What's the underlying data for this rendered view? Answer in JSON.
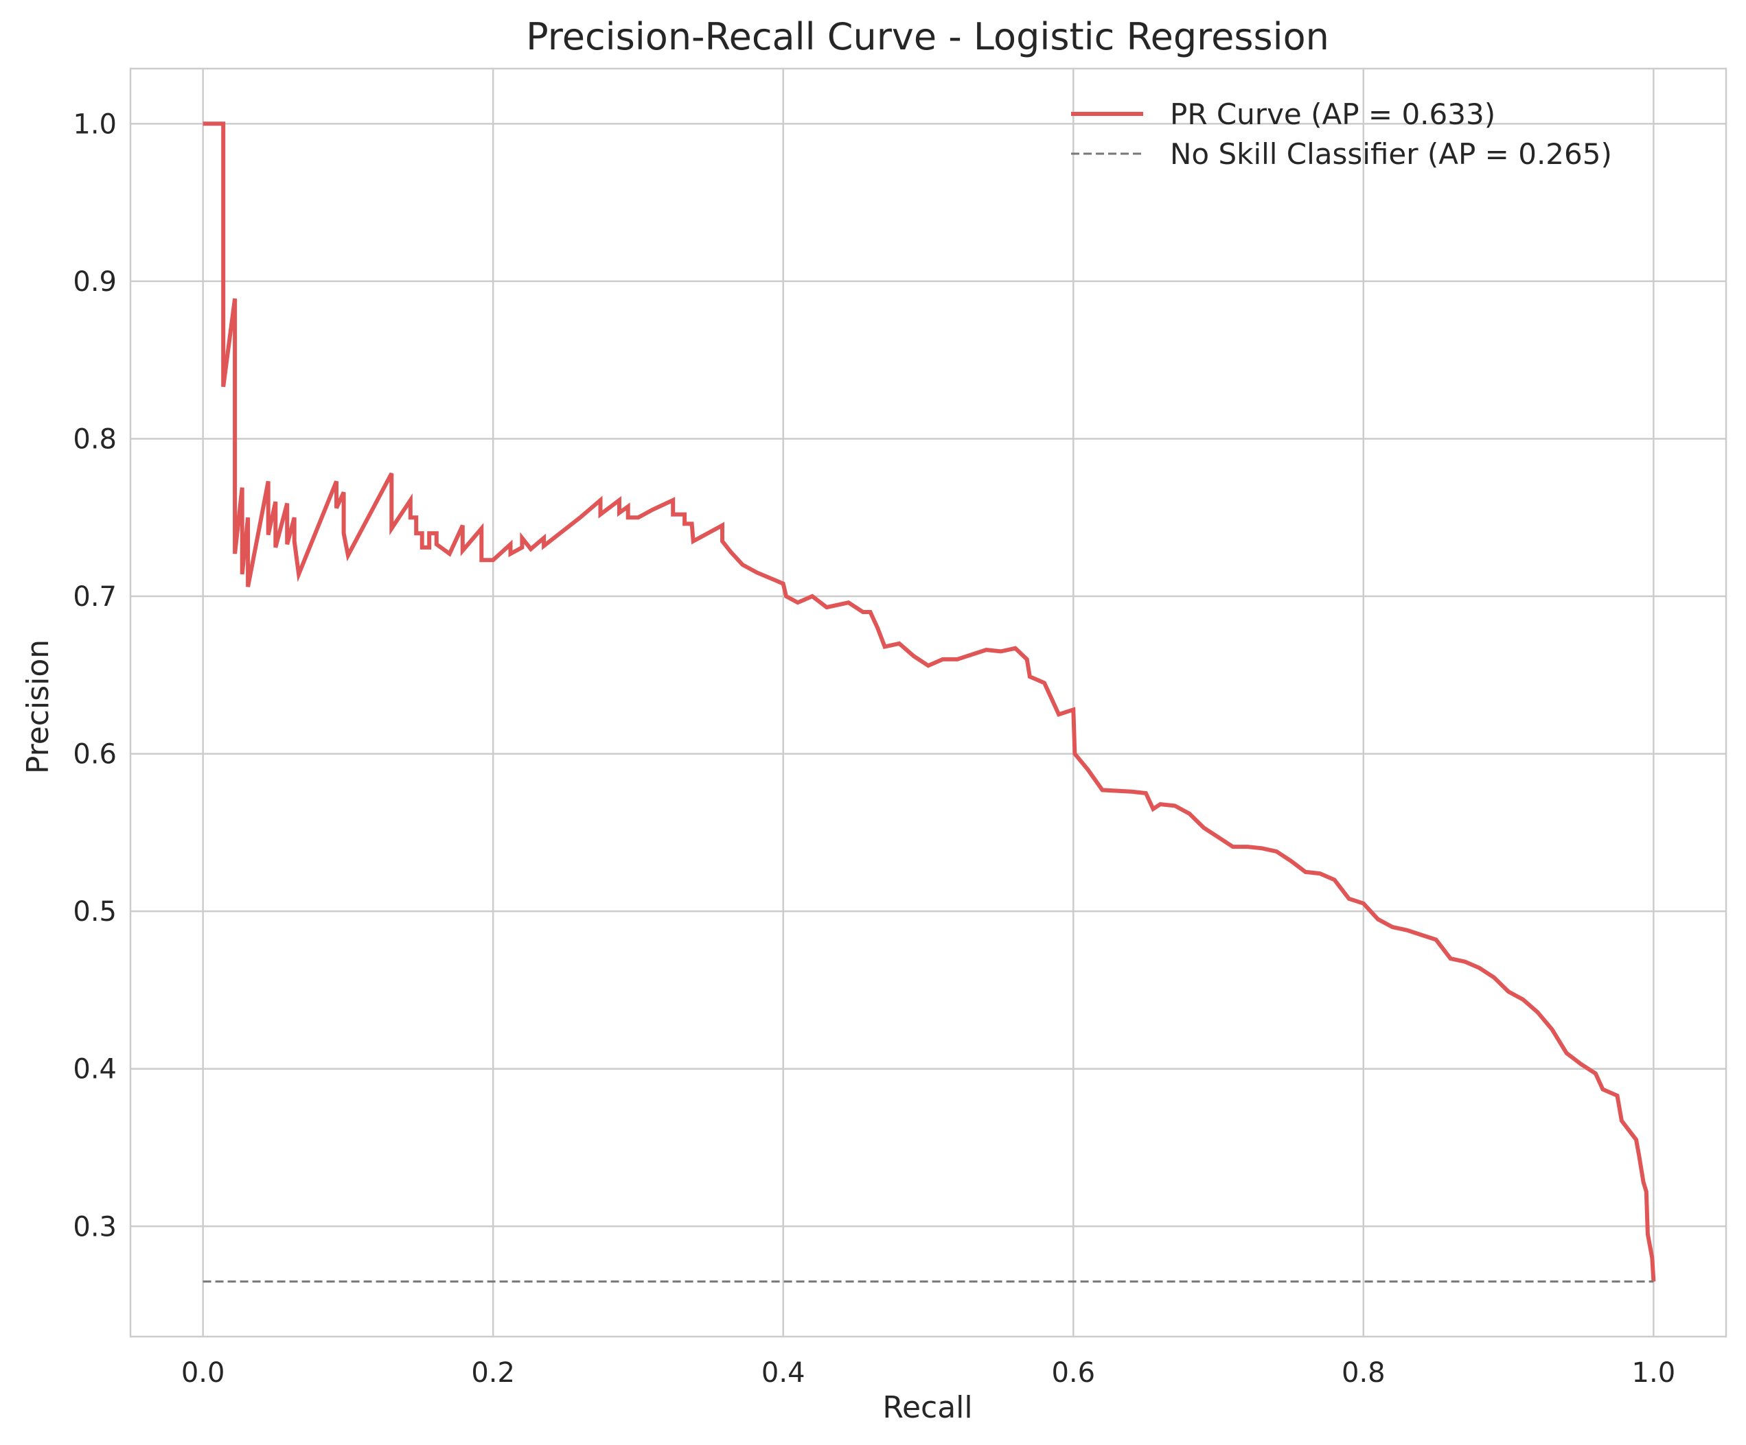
{
  "chart_data": {
    "type": "line",
    "title": "Precision-Recall Curve - Logistic Regression",
    "xlabel": "Recall",
    "ylabel": "Precision",
    "xlim": [
      -0.05,
      1.05
    ],
    "ylim": [
      0.23,
      1.035
    ],
    "xticks": [
      0.0,
      0.2,
      0.4,
      0.6,
      0.8,
      1.0
    ],
    "xtick_labels": [
      "0.0",
      "0.2",
      "0.4",
      "0.6",
      "0.8",
      "1.0"
    ],
    "yticks": [
      0.3,
      0.4,
      0.5,
      0.6,
      0.7,
      0.8,
      0.9,
      1.0
    ],
    "ytick_labels": [
      "0.3",
      "0.4",
      "0.5",
      "0.6",
      "0.7",
      "0.8",
      "0.9",
      "1.0"
    ],
    "grid": true,
    "legend_position": "top-right",
    "series": [
      {
        "name": "PR Curve (AP = 0.633)",
        "color": "#e05555",
        "style": "solid",
        "points": [
          [
            0.0,
            1.0
          ],
          [
            0.014,
            1.0
          ],
          [
            0.014,
            0.833
          ],
          [
            0.022,
            0.889
          ],
          [
            0.022,
            0.727
          ],
          [
            0.027,
            0.769
          ],
          [
            0.027,
            0.714
          ],
          [
            0.031,
            0.75
          ],
          [
            0.031,
            0.706
          ],
          [
            0.045,
            0.773
          ],
          [
            0.045,
            0.739
          ],
          [
            0.05,
            0.76
          ],
          [
            0.05,
            0.731
          ],
          [
            0.058,
            0.759
          ],
          [
            0.058,
            0.733
          ],
          [
            0.063,
            0.75
          ],
          [
            0.063,
            0.735
          ],
          [
            0.066,
            0.714
          ],
          [
            0.092,
            0.773
          ],
          [
            0.092,
            0.756
          ],
          [
            0.097,
            0.766
          ],
          [
            0.097,
            0.74
          ],
          [
            0.1,
            0.726
          ],
          [
            0.13,
            0.778
          ],
          [
            0.13,
            0.743
          ],
          [
            0.143,
            0.761
          ],
          [
            0.143,
            0.75
          ],
          [
            0.147,
            0.75
          ],
          [
            0.147,
            0.74
          ],
          [
            0.151,
            0.74
          ],
          [
            0.151,
            0.731
          ],
          [
            0.156,
            0.731
          ],
          [
            0.156,
            0.74
          ],
          [
            0.161,
            0.74
          ],
          [
            0.161,
            0.733
          ],
          [
            0.17,
            0.727
          ],
          [
            0.179,
            0.745
          ],
          [
            0.179,
            0.729
          ],
          [
            0.192,
            0.743
          ],
          [
            0.192,
            0.723
          ],
          [
            0.2,
            0.723
          ],
          [
            0.212,
            0.733
          ],
          [
            0.212,
            0.727
          ],
          [
            0.22,
            0.731
          ],
          [
            0.22,
            0.737
          ],
          [
            0.226,
            0.73
          ],
          [
            0.235,
            0.737
          ],
          [
            0.235,
            0.732
          ],
          [
            0.26,
            0.75
          ],
          [
            0.274,
            0.761
          ],
          [
            0.274,
            0.752
          ],
          [
            0.287,
            0.761
          ],
          [
            0.287,
            0.753
          ],
          [
            0.293,
            0.757
          ],
          [
            0.293,
            0.75
          ],
          [
            0.3,
            0.75
          ],
          [
            0.31,
            0.755
          ],
          [
            0.324,
            0.761
          ],
          [
            0.324,
            0.752
          ],
          [
            0.332,
            0.752
          ],
          [
            0.332,
            0.746
          ],
          [
            0.337,
            0.746
          ],
          [
            0.338,
            0.735
          ],
          [
            0.358,
            0.745
          ],
          [
            0.358,
            0.735
          ],
          [
            0.364,
            0.728
          ],
          [
            0.372,
            0.72
          ],
          [
            0.382,
            0.715
          ],
          [
            0.395,
            0.71
          ],
          [
            0.4,
            0.708
          ],
          [
            0.402,
            0.7
          ],
          [
            0.41,
            0.696
          ],
          [
            0.42,
            0.7
          ],
          [
            0.43,
            0.693
          ],
          [
            0.445,
            0.696
          ],
          [
            0.455,
            0.69
          ],
          [
            0.46,
            0.69
          ],
          [
            0.465,
            0.68
          ],
          [
            0.47,
            0.668
          ],
          [
            0.48,
            0.67
          ],
          [
            0.49,
            0.662
          ],
          [
            0.5,
            0.656
          ],
          [
            0.51,
            0.66
          ],
          [
            0.52,
            0.66
          ],
          [
            0.54,
            0.666
          ],
          [
            0.55,
            0.665
          ],
          [
            0.56,
            0.667
          ],
          [
            0.568,
            0.66
          ],
          [
            0.57,
            0.649
          ],
          [
            0.58,
            0.645
          ],
          [
            0.585,
            0.635
          ],
          [
            0.59,
            0.625
          ],
          [
            0.6,
            0.628
          ],
          [
            0.601,
            0.6
          ],
          [
            0.61,
            0.59
          ],
          [
            0.62,
            0.577
          ],
          [
            0.64,
            0.576
          ],
          [
            0.65,
            0.575
          ],
          [
            0.655,
            0.565
          ],
          [
            0.66,
            0.568
          ],
          [
            0.67,
            0.567
          ],
          [
            0.68,
            0.562
          ],
          [
            0.69,
            0.553
          ],
          [
            0.7,
            0.547
          ],
          [
            0.71,
            0.541
          ],
          [
            0.72,
            0.541
          ],
          [
            0.73,
            0.54
          ],
          [
            0.74,
            0.538
          ],
          [
            0.75,
            0.532
          ],
          [
            0.76,
            0.525
          ],
          [
            0.77,
            0.524
          ],
          [
            0.78,
            0.52
          ],
          [
            0.79,
            0.508
          ],
          [
            0.8,
            0.505
          ],
          [
            0.81,
            0.495
          ],
          [
            0.82,
            0.49
          ],
          [
            0.83,
            0.488
          ],
          [
            0.84,
            0.485
          ],
          [
            0.85,
            0.482
          ],
          [
            0.86,
            0.47
          ],
          [
            0.87,
            0.468
          ],
          [
            0.88,
            0.464
          ],
          [
            0.89,
            0.458
          ],
          [
            0.9,
            0.449
          ],
          [
            0.91,
            0.444
          ],
          [
            0.92,
            0.436
          ],
          [
            0.93,
            0.425
          ],
          [
            0.94,
            0.41
          ],
          [
            0.95,
            0.403
          ],
          [
            0.96,
            0.397
          ],
          [
            0.965,
            0.387
          ],
          [
            0.975,
            0.383
          ],
          [
            0.978,
            0.367
          ],
          [
            0.988,
            0.355
          ],
          [
            0.99,
            0.345
          ],
          [
            0.993,
            0.328
          ],
          [
            0.995,
            0.322
          ],
          [
            0.996,
            0.295
          ],
          [
            0.999,
            0.28
          ],
          [
            1.0,
            0.265
          ]
        ]
      },
      {
        "name": "No Skill Classifier (AP = 0.265)",
        "color": "#777777",
        "style": "dashed",
        "points": [
          [
            0.0,
            0.265
          ],
          [
            1.0,
            0.265
          ]
        ]
      }
    ]
  }
}
